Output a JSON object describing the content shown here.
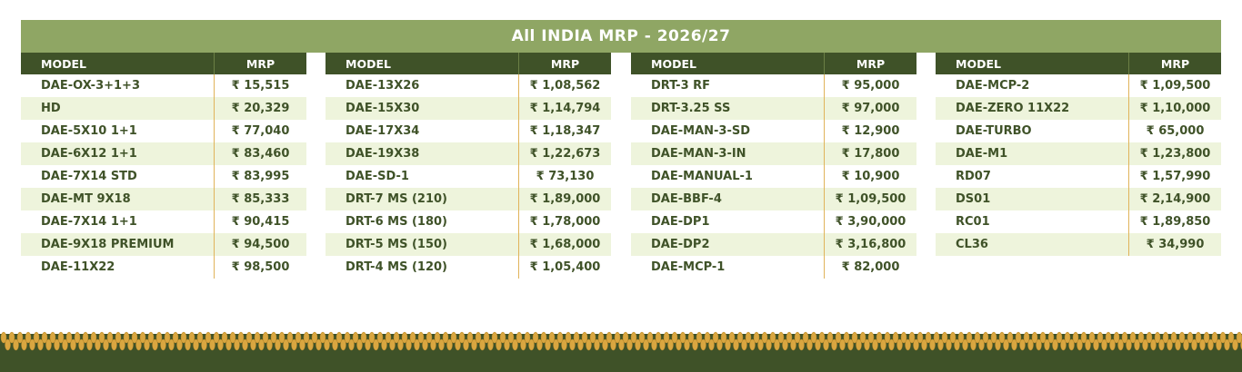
{
  "title": "All INDIA MRP - 2026/27",
  "headers": {
    "model": "MODEL",
    "mrp": "MRP"
  },
  "columns": [
    [
      {
        "model": "DAE-OX-3+1+3",
        "mrp": "₹ 15,515"
      },
      {
        "model": "HD",
        "mrp": "₹ 20,329"
      },
      {
        "model": "DAE-5X10 1+1",
        "mrp": "₹ 77,040"
      },
      {
        "model": "DAE-6X12 1+1",
        "mrp": "₹ 83,460"
      },
      {
        "model": "DAE-7X14 STD",
        "mrp": "₹ 83,995"
      },
      {
        "model": "DAE-MT 9X18",
        "mrp": "₹ 85,333"
      },
      {
        "model": "DAE-7X14 1+1",
        "mrp": "₹ 90,415"
      },
      {
        "model": "DAE-9X18 PREMIUM",
        "mrp": "₹ 94,500"
      },
      {
        "model": "DAE-11X22",
        "mrp": "₹ 98,500"
      }
    ],
    [
      {
        "model": "DAE-13X26",
        "mrp": "₹ 1,08,562"
      },
      {
        "model": "DAE-15X30",
        "mrp": "₹ 1,14,794"
      },
      {
        "model": "DAE-17X34",
        "mrp": "₹ 1,18,347"
      },
      {
        "model": "DAE-19X38",
        "mrp": "₹ 1,22,673"
      },
      {
        "model": "DAE-SD-1",
        "mrp": "₹ 73,130"
      },
      {
        "model": "DRT-7 MS (210)",
        "mrp": "₹ 1,89,000"
      },
      {
        "model": "DRT-6 MS (180)",
        "mrp": "₹ 1,78,000"
      },
      {
        "model": "DRT-5 MS (150)",
        "mrp": "₹ 1,68,000"
      },
      {
        "model": "DRT-4 MS (120)",
        "mrp": "₹ 1,05,400"
      }
    ],
    [
      {
        "model": "DRT-3 RF",
        "mrp": "₹ 95,000"
      },
      {
        "model": "DRT-3.25 SS",
        "mrp": "₹ 97,000"
      },
      {
        "model": "DAE-MAN-3-SD",
        "mrp": "₹ 12,900"
      },
      {
        "model": "DAE-MAN-3-IN",
        "mrp": "₹ 17,800"
      },
      {
        "model": "DAE-MANUAL-1",
        "mrp": "₹ 10,900"
      },
      {
        "model": "DAE-BBF-4",
        "mrp": "₹ 1,09,500"
      },
      {
        "model": "DAE-DP1",
        "mrp": "₹ 3,90,000"
      },
      {
        "model": "DAE-DP2",
        "mrp": "₹ 3,16,800"
      },
      {
        "model": "DAE-MCP-1",
        "mrp": "₹ 82,000"
      }
    ],
    [
      {
        "model": "DAE-MCP-2",
        "mrp": "₹ 1,09,500"
      },
      {
        "model": "DAE-ZERO 11X22",
        "mrp": "₹ 1,10,000"
      },
      {
        "model": "DAE-TURBO",
        "mrp": "₹ 65,000"
      },
      {
        "model": "DAE-M1",
        "mrp": "₹ 1,23,800"
      },
      {
        "model": "RD07",
        "mrp": "₹ 1,57,990"
      },
      {
        "model": "DS01",
        "mrp": "₹ 2,14,900"
      },
      {
        "model": "RC01",
        "mrp": "₹ 1,89,850"
      },
      {
        "model": "CL36",
        "mrp": "₹ 34,990"
      }
    ]
  ],
  "colors": {
    "banner": "#8fa664",
    "header": "#3f5228",
    "stripe": "#eef4dc",
    "divider": "#e0b35a",
    "wheat": "#d9a640"
  },
  "decoration": "wheat-border-icon"
}
